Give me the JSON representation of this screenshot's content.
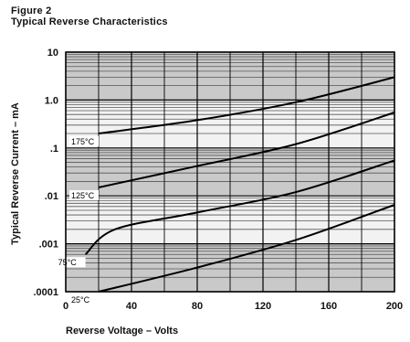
{
  "header": {
    "figure_label": "Figure 2",
    "figure_title": "Typical Reverse Characteristics"
  },
  "chart_data": {
    "type": "line",
    "title": "Typical Reverse Characteristics",
    "xlabel": "Reverse Voltage – Volts",
    "ylabel": "Typical Reverse Current – mA",
    "x_scale": "linear",
    "y_scale": "log",
    "xlim": [
      0,
      200
    ],
    "ylim": [
      0.0001,
      10
    ],
    "x_ticks": [
      0,
      40,
      80,
      120,
      160,
      200
    ],
    "x_tick_labels": [
      "0",
      "40",
      "80",
      "120",
      "160",
      "200"
    ],
    "y_ticks": [
      10,
      1,
      0.1,
      0.01,
      0.001,
      0.0001
    ],
    "y_tick_labels": [
      "10",
      "1.0",
      ".1",
      ".01",
      ".001",
      ".0001"
    ],
    "grid": true,
    "series": [
      {
        "name": "175°C",
        "x": [
          20,
          80,
          140,
          200
        ],
        "y": [
          0.2,
          0.38,
          0.9,
          3.0
        ]
      },
      {
        "name": "125°C",
        "x": [
          20,
          80,
          140,
          200
        ],
        "y": [
          0.015,
          0.042,
          0.12,
          0.55
        ]
      },
      {
        "name": "75°C",
        "x": [
          12,
          30,
          80,
          140,
          200
        ],
        "y": [
          0.0006,
          0.002,
          0.0045,
          0.012,
          0.055
        ]
      },
      {
        "name": "25°C",
        "x": [
          20,
          80,
          140,
          200
        ],
        "y": [
          0.0001,
          0.00032,
          0.0012,
          0.0065
        ]
      }
    ]
  }
}
